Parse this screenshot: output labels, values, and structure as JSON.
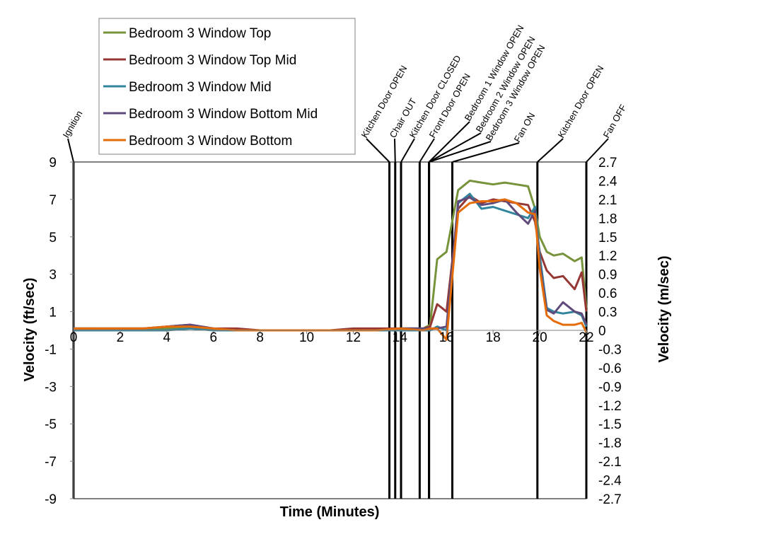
{
  "chart_data": {
    "type": "line",
    "xlabel": "Time (Minutes)",
    "ylabel_left": "Velocity (ft/sec)",
    "ylabel_right": "Velocity (m/sec)",
    "xlim": [
      0,
      22
    ],
    "ylim_left": [
      -9,
      9
    ],
    "ylim_right": [
      -2.7,
      2.7
    ],
    "x_ticks": [
      "0",
      "2",
      "4",
      "6",
      "8",
      "10",
      "12",
      "14",
      "16",
      "18",
      "20",
      "22"
    ],
    "y_ticks_left": [
      "9",
      "7",
      "5",
      "3",
      "1",
      "-1",
      "-3",
      "-5",
      "-7",
      "-9"
    ],
    "y_ticks_right": [
      "2.7",
      "2.4",
      "2.1",
      "1.8",
      "1.5",
      "1.2",
      "0.9",
      "0.6",
      "0.3",
      "0",
      "-0.3",
      "-0.6",
      "-0.9",
      "-1.2",
      "-1.5",
      "-1.8",
      "-2.1",
      "-2.4",
      "-2.7"
    ],
    "grid": false,
    "legend_position": "top-left (outside plot)",
    "events": [
      {
        "time": 0.0,
        "label": "Ignition"
      },
      {
        "time": 13.55,
        "label": "Kitchen Door OPEN"
      },
      {
        "time": 13.8,
        "label": "Chair OUT"
      },
      {
        "time": 14.05,
        "label": "Kitchen Door CLOSED"
      },
      {
        "time": 14.85,
        "label": "Front Door OPEN"
      },
      {
        "time": 15.25,
        "label": "Bedroom 1 Window OPEN"
      },
      {
        "time": 15.25,
        "label": "Bedroom 2 Window OPEN"
      },
      {
        "time": 15.25,
        "label": "Bedroom 3 Window OPEN"
      },
      {
        "time": 16.25,
        "label": "Fan ON"
      },
      {
        "time": 19.9,
        "label": "Kitchen Door OPEN"
      },
      {
        "time": 22.0,
        "label": "Fan OFF"
      }
    ],
    "x": [
      0,
      1,
      2,
      3,
      4,
      5,
      6,
      7,
      8,
      9,
      10,
      11,
      12,
      13,
      14,
      15,
      15.3,
      15.6,
      16,
      16.5,
      17,
      17.5,
      18,
      18.5,
      19,
      19.5,
      19.8,
      20,
      20.3,
      20.6,
      21,
      21.5,
      21.8,
      22
    ],
    "series": [
      {
        "name": "Bedroom 3 Window Top",
        "color": "#77933C",
        "values": [
          0.1,
          0.1,
          0.0,
          0.1,
          0.1,
          0.2,
          0.1,
          0.0,
          0.0,
          0.0,
          0.0,
          0.0,
          0.0,
          0.0,
          0.1,
          0.1,
          0.3,
          3.8,
          4.2,
          7.5,
          8.0,
          7.9,
          7.8,
          7.9,
          7.8,
          7.7,
          6.5,
          5.0,
          4.2,
          4.0,
          4.1,
          3.7,
          3.9,
          1.2
        ]
      },
      {
        "name": "Bedroom 3 Window Top Mid",
        "color": "#953735",
        "values": [
          0.1,
          0.1,
          0.1,
          0.1,
          0.2,
          0.3,
          0.1,
          0.1,
          0.0,
          0.0,
          0.0,
          0.0,
          0.1,
          0.1,
          0.1,
          0.1,
          0.2,
          1.4,
          1.0,
          6.5,
          7.2,
          6.8,
          7.0,
          6.9,
          6.8,
          6.7,
          5.8,
          4.2,
          3.2,
          2.8,
          2.9,
          2.2,
          3.1,
          1.0
        ]
      },
      {
        "name": "Bedroom 3 Window Mid",
        "color": "#31859C",
        "values": [
          0.0,
          0.0,
          0.0,
          0.0,
          0.0,
          0.1,
          0.0,
          0.0,
          0.0,
          0.0,
          0.0,
          0.0,
          0.0,
          0.0,
          0.0,
          0.0,
          0.0,
          0.2,
          0.0,
          6.8,
          7.3,
          6.5,
          6.6,
          6.4,
          6.2,
          6.0,
          6.6,
          4.0,
          1.2,
          1.0,
          0.9,
          1.0,
          0.8,
          0.2
        ]
      },
      {
        "name": "Bedroom 3 Window Bottom Mid",
        "color": "#604A7B",
        "values": [
          0.1,
          0.1,
          0.1,
          0.1,
          0.2,
          0.3,
          0.1,
          0.0,
          0.0,
          0.0,
          0.0,
          0.0,
          0.0,
          0.0,
          0.1,
          0.1,
          0.1,
          0.1,
          0.2,
          6.9,
          7.1,
          6.7,
          6.8,
          7.0,
          6.3,
          5.7,
          6.4,
          3.6,
          1.1,
          0.9,
          1.5,
          1.0,
          0.9,
          0.3
        ]
      },
      {
        "name": "Bedroom 3 Window Bottom",
        "color": "#E46C0A",
        "values": [
          0.1,
          0.1,
          0.1,
          0.1,
          0.2,
          0.2,
          0.1,
          0.0,
          0.0,
          0.0,
          0.0,
          0.0,
          0.0,
          0.0,
          0.1,
          0.0,
          0.1,
          0.1,
          -0.5,
          6.3,
          6.8,
          6.9,
          6.9,
          7.0,
          6.8,
          6.3,
          6.2,
          3.3,
          0.8,
          0.5,
          0.3,
          0.3,
          0.4,
          -0.1
        ]
      }
    ]
  }
}
